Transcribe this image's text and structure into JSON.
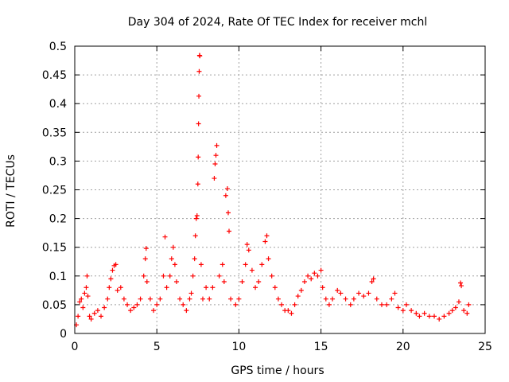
{
  "chart_data": {
    "type": "scatter",
    "title": "Day 304 of 2024, Rate Of TEC Index for receiver mchl",
    "xlabel": "GPS time / hours",
    "ylabel": "ROTI / TECUs",
    "xlim": [
      0,
      25
    ],
    "ylim": [
      0,
      0.5
    ],
    "grid": true,
    "marker": "plus",
    "color": "#ff0000",
    "x_ticks": [
      0,
      5,
      10,
      15,
      20,
      25
    ],
    "x_tick_labels": [
      "0",
      "5",
      "10",
      "15",
      "20",
      "25"
    ],
    "y_ticks": [
      0,
      0.05,
      0.1,
      0.15,
      0.2,
      0.25,
      0.3,
      0.35,
      0.4,
      0.45,
      0.5
    ],
    "y_tick_labels": [
      "0",
      "0.05",
      "0.1",
      "0.15",
      "0.2",
      "0.25",
      "0.3",
      "0.35",
      "0.4",
      "0.45",
      "0.5"
    ],
    "series": [
      {
        "name": "ROTI",
        "points": [
          [
            0.1,
            0.015
          ],
          [
            0.2,
            0.03
          ],
          [
            0.3,
            0.055
          ],
          [
            0.4,
            0.06
          ],
          [
            0.5,
            0.045
          ],
          [
            0.6,
            0.07
          ],
          [
            0.7,
            0.08
          ],
          [
            0.75,
            0.1
          ],
          [
            0.8,
            0.065
          ],
          [
            0.9,
            0.03
          ],
          [
            1.0,
            0.025
          ],
          [
            1.2,
            0.035
          ],
          [
            1.4,
            0.04
          ],
          [
            1.6,
            0.03
          ],
          [
            1.8,
            0.045
          ],
          [
            2.0,
            0.06
          ],
          [
            2.1,
            0.08
          ],
          [
            2.2,
            0.095
          ],
          [
            2.3,
            0.11
          ],
          [
            2.4,
            0.118
          ],
          [
            2.5,
            0.12
          ],
          [
            2.6,
            0.075
          ],
          [
            2.8,
            0.08
          ],
          [
            3.0,
            0.06
          ],
          [
            3.2,
            0.05
          ],
          [
            3.4,
            0.04
          ],
          [
            3.6,
            0.045
          ],
          [
            3.8,
            0.05
          ],
          [
            4.0,
            0.06
          ],
          [
            4.2,
            0.1
          ],
          [
            4.3,
            0.13
          ],
          [
            4.35,
            0.148
          ],
          [
            4.4,
            0.09
          ],
          [
            4.6,
            0.06
          ],
          [
            4.8,
            0.04
          ],
          [
            5.0,
            0.05
          ],
          [
            5.2,
            0.06
          ],
          [
            5.4,
            0.1
          ],
          [
            5.5,
            0.168
          ],
          [
            5.6,
            0.08
          ],
          [
            5.8,
            0.1
          ],
          [
            5.9,
            0.13
          ],
          [
            6.0,
            0.15
          ],
          [
            6.1,
            0.12
          ],
          [
            6.2,
            0.09
          ],
          [
            6.4,
            0.06
          ],
          [
            6.6,
            0.05
          ],
          [
            6.8,
            0.04
          ],
          [
            7.0,
            0.06
          ],
          [
            7.1,
            0.07
          ],
          [
            7.2,
            0.1
          ],
          [
            7.3,
            0.13
          ],
          [
            7.35,
            0.17
          ],
          [
            7.4,
            0.2
          ],
          [
            7.45,
            0.205
          ],
          [
            7.5,
            0.26
          ],
          [
            7.52,
            0.307
          ],
          [
            7.54,
            0.365
          ],
          [
            7.56,
            0.413
          ],
          [
            7.58,
            0.456
          ],
          [
            7.6,
            0.484
          ],
          [
            7.62,
            0.483
          ],
          [
            7.7,
            0.12
          ],
          [
            7.8,
            0.06
          ],
          [
            8.0,
            0.08
          ],
          [
            8.2,
            0.06
          ],
          [
            8.4,
            0.08
          ],
          [
            8.5,
            0.27
          ],
          [
            8.55,
            0.295
          ],
          [
            8.6,
            0.31
          ],
          [
            8.65,
            0.327
          ],
          [
            8.8,
            0.1
          ],
          [
            9.0,
            0.12
          ],
          [
            9.1,
            0.09
          ],
          [
            9.2,
            0.24
          ],
          [
            9.3,
            0.252
          ],
          [
            9.35,
            0.21
          ],
          [
            9.4,
            0.178
          ],
          [
            9.5,
            0.06
          ],
          [
            9.8,
            0.05
          ],
          [
            10.0,
            0.06
          ],
          [
            10.2,
            0.09
          ],
          [
            10.4,
            0.12
          ],
          [
            10.5,
            0.155
          ],
          [
            10.6,
            0.145
          ],
          [
            10.8,
            0.11
          ],
          [
            11.0,
            0.08
          ],
          [
            11.2,
            0.09
          ],
          [
            11.4,
            0.12
          ],
          [
            11.6,
            0.16
          ],
          [
            11.7,
            0.17
          ],
          [
            11.8,
            0.13
          ],
          [
            12.0,
            0.1
          ],
          [
            12.2,
            0.08
          ],
          [
            12.4,
            0.06
          ],
          [
            12.6,
            0.05
          ],
          [
            12.8,
            0.04
          ],
          [
            13.0,
            0.04
          ],
          [
            13.2,
            0.035
          ],
          [
            13.4,
            0.05
          ],
          [
            13.6,
            0.065
          ],
          [
            13.8,
            0.075
          ],
          [
            14.0,
            0.09
          ],
          [
            14.2,
            0.1
          ],
          [
            14.4,
            0.095
          ],
          [
            14.6,
            0.105
          ],
          [
            14.8,
            0.1
          ],
          [
            15.0,
            0.11
          ],
          [
            15.1,
            0.08
          ],
          [
            15.3,
            0.06
          ],
          [
            15.5,
            0.05
          ],
          [
            15.7,
            0.06
          ],
          [
            16.0,
            0.075
          ],
          [
            16.2,
            0.07
          ],
          [
            16.5,
            0.06
          ],
          [
            16.8,
            0.05
          ],
          [
            17.0,
            0.06
          ],
          [
            17.3,
            0.07
          ],
          [
            17.6,
            0.065
          ],
          [
            17.9,
            0.07
          ],
          [
            18.1,
            0.09
          ],
          [
            18.2,
            0.095
          ],
          [
            18.4,
            0.06
          ],
          [
            18.7,
            0.05
          ],
          [
            19.0,
            0.05
          ],
          [
            19.3,
            0.06
          ],
          [
            19.5,
            0.07
          ],
          [
            19.7,
            0.045
          ],
          [
            20.0,
            0.04
          ],
          [
            20.2,
            0.05
          ],
          [
            20.5,
            0.04
          ],
          [
            20.8,
            0.035
          ],
          [
            21.0,
            0.03
          ],
          [
            21.3,
            0.035
          ],
          [
            21.6,
            0.03
          ],
          [
            21.9,
            0.03
          ],
          [
            22.2,
            0.025
          ],
          [
            22.5,
            0.03
          ],
          [
            22.8,
            0.035
          ],
          [
            23.0,
            0.04
          ],
          [
            23.2,
            0.045
          ],
          [
            23.4,
            0.055
          ],
          [
            23.5,
            0.088
          ],
          [
            23.55,
            0.083
          ],
          [
            23.7,
            0.04
          ],
          [
            23.9,
            0.035
          ],
          [
            24.0,
            0.05
          ]
        ]
      }
    ]
  }
}
